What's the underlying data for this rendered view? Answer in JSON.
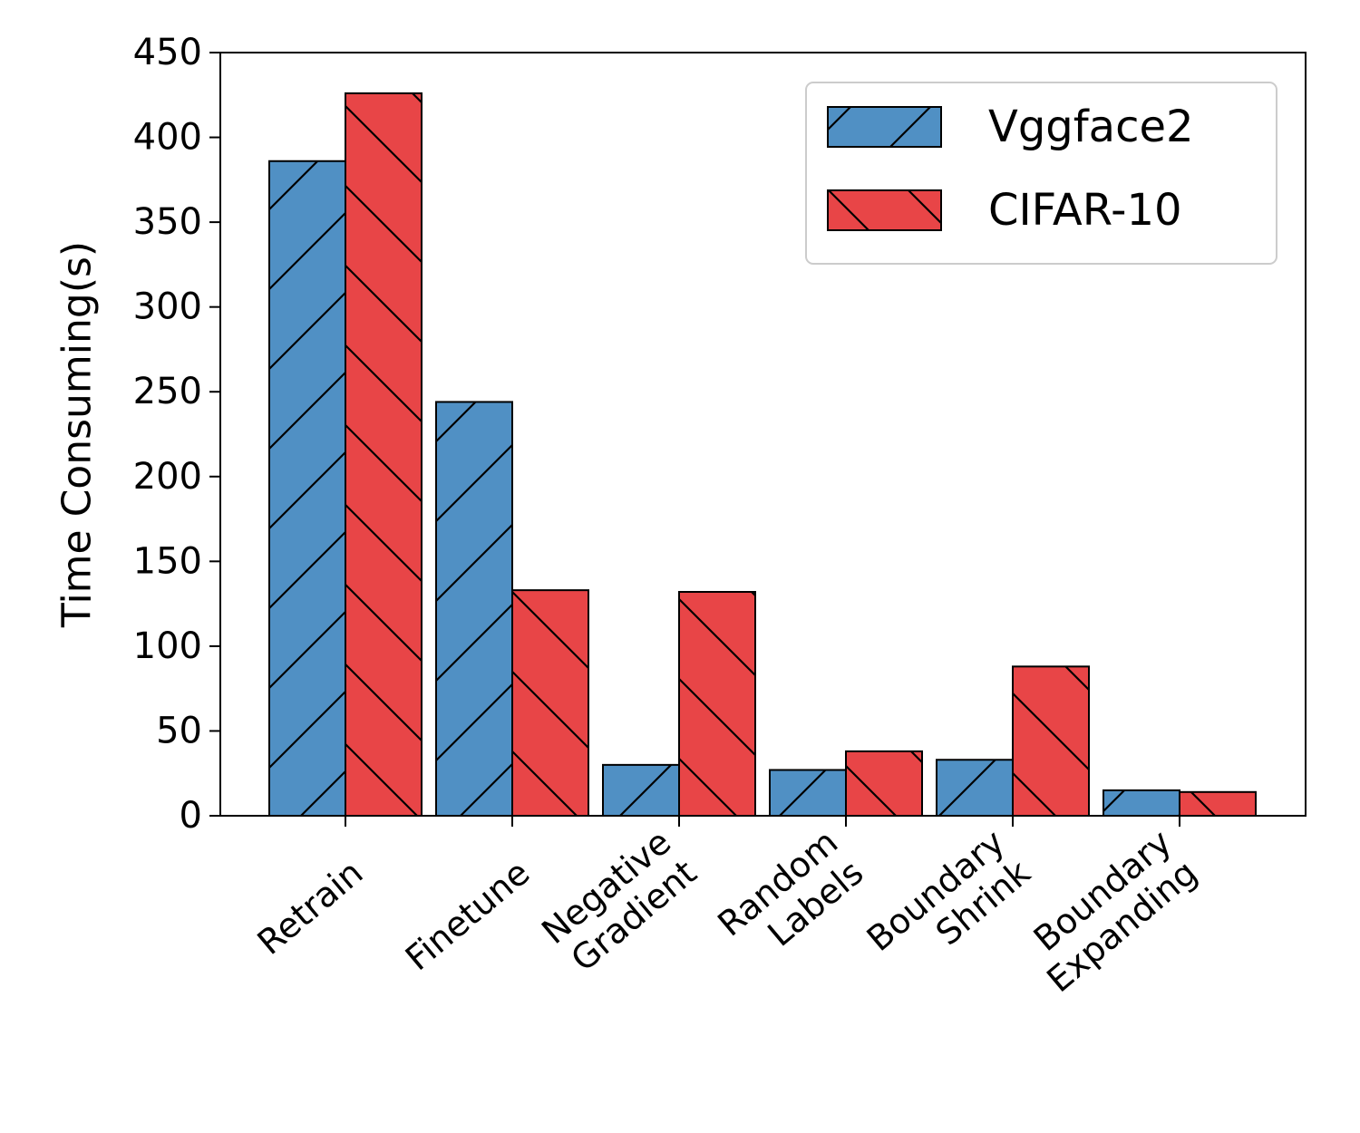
{
  "chart_data": {
    "type": "bar",
    "title": "",
    "xlabel": "",
    "ylabel": "Time Consuming(s)",
    "ylim": [
      0,
      450
    ],
    "yticks": [
      0,
      50,
      100,
      150,
      200,
      250,
      300,
      350,
      400,
      450
    ],
    "categories": [
      [
        "Retrain"
      ],
      [
        "Finetune"
      ],
      [
        "Negative",
        "Gradient"
      ],
      [
        "Random",
        "Labels"
      ],
      [
        "Boundary",
        "Shrink"
      ],
      [
        "Boundary",
        "Expanding"
      ]
    ],
    "series": [
      {
        "name": "Vggface2",
        "color": "#5090c4",
        "hatch": "forward-slash",
        "values": [
          386,
          244,
          30,
          27,
          33,
          15
        ]
      },
      {
        "name": "CIFAR-10",
        "color": "#e84547",
        "hatch": "back-slash",
        "values": [
          426,
          133,
          132,
          38,
          88,
          14
        ]
      }
    ],
    "legend": "top-right",
    "grid": false
  }
}
